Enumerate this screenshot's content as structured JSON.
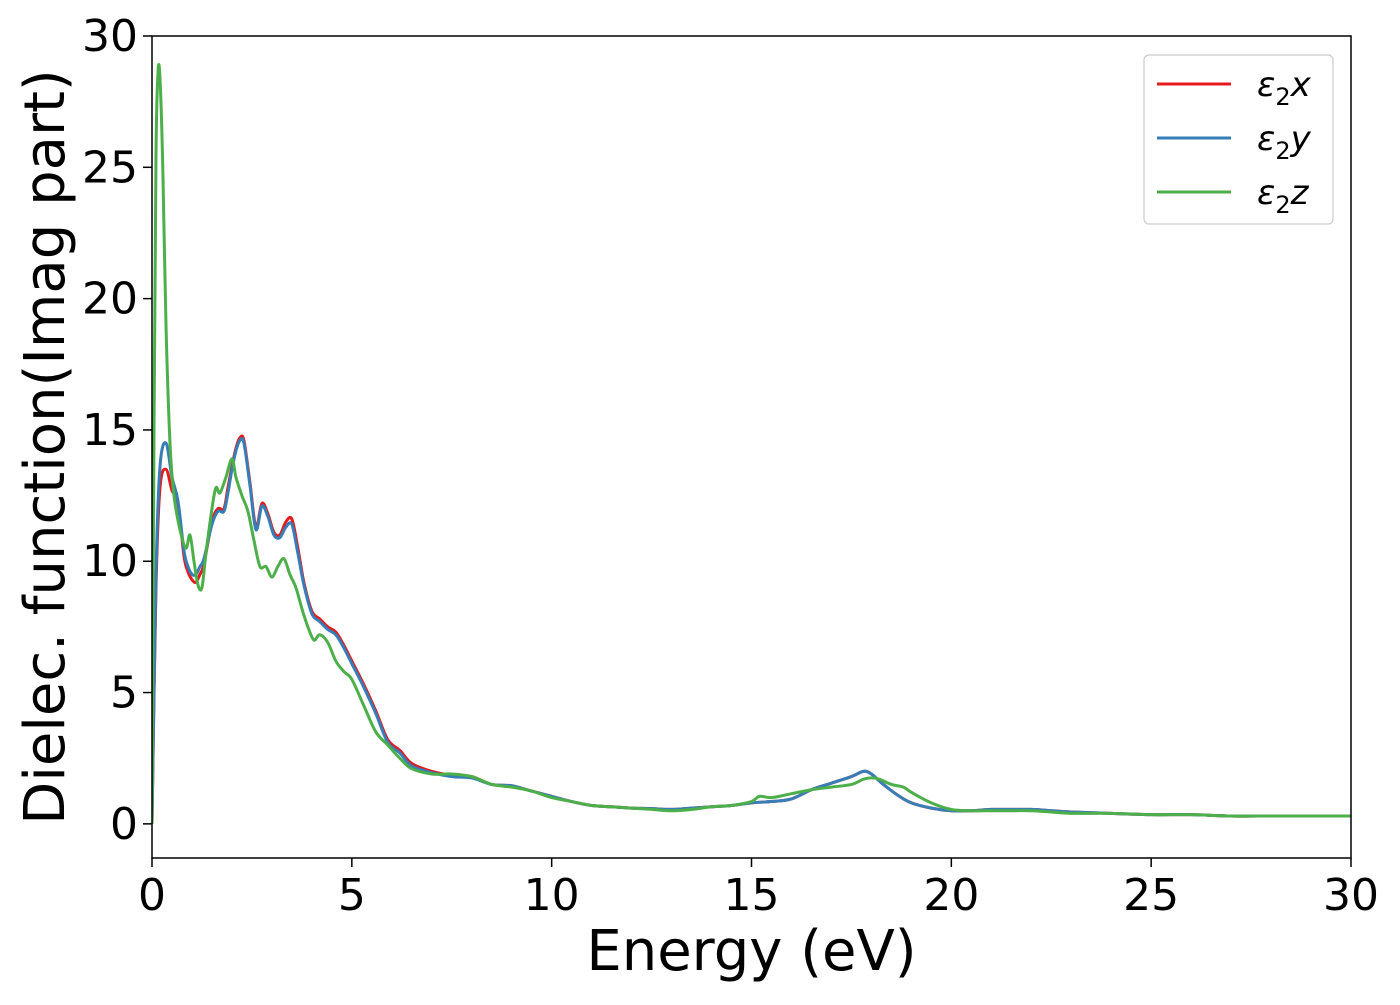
{
  "chart_data": {
    "type": "line",
    "xlabel": "Energy (eV)",
    "ylabel": "Dielec. function(Imag part)",
    "xlim": [
      0,
      30
    ],
    "ylim": [
      -1.3,
      30
    ],
    "xticks": [
      "0",
      "5",
      "10",
      "15",
      "20",
      "25",
      "30"
    ],
    "yticks": [
      "0",
      "5",
      "10",
      "15",
      "20",
      "25",
      "30"
    ],
    "grid": false,
    "legend_placement": "top-right",
    "series": [
      {
        "name": "ε2x",
        "legend_base": "ε",
        "legend_sub": "2",
        "legend_suffix": "x",
        "color": "#e41a1c",
        "x": [
          0,
          0.1,
          0.2,
          0.35,
          0.5,
          0.65,
          0.8,
          0.9,
          1.0,
          1.1,
          1.2,
          1.3,
          1.5,
          1.65,
          1.8,
          1.9,
          2.0,
          2.1,
          2.2,
          2.3,
          2.45,
          2.6,
          2.75,
          2.9,
          3.05,
          3.2,
          3.35,
          3.5,
          3.65,
          3.8,
          4.0,
          4.2,
          4.4,
          4.6,
          4.8,
          5.0,
          5.3,
          5.6,
          5.9,
          6.2,
          6.5,
          7.0,
          7.5,
          8.0,
          8.5,
          9.0,
          9.5,
          10.0,
          10.5,
          11.0,
          11.5,
          12.0,
          12.5,
          13.0,
          13.5,
          14.0,
          14.5,
          15.0,
          15.5,
          16.0,
          16.5,
          17.0,
          17.5,
          17.8,
          18.0,
          18.3,
          18.7,
          19.0,
          19.5,
          20.0,
          20.5,
          21.0,
          21.5,
          22.0,
          22.5,
          23.0,
          24.0,
          25.0,
          26.0,
          27.0,
          28.0,
          29.0,
          30.0
        ],
        "y": [
          0,
          9.0,
          12.8,
          13.5,
          12.7,
          12.2,
          10.2,
          9.6,
          9.3,
          9.2,
          9.5,
          9.9,
          11.5,
          12.0,
          12.0,
          12.8,
          13.6,
          14.3,
          14.7,
          14.6,
          13.0,
          11.3,
          12.2,
          11.8,
          11.1,
          11.0,
          11.5,
          11.6,
          10.5,
          9.2,
          8.1,
          7.8,
          7.5,
          7.3,
          6.8,
          6.2,
          5.3,
          4.3,
          3.2,
          2.8,
          2.3,
          2.0,
          1.85,
          1.8,
          1.5,
          1.45,
          1.25,
          1.05,
          0.85,
          0.7,
          0.65,
          0.6,
          0.58,
          0.55,
          0.6,
          0.65,
          0.7,
          0.8,
          0.85,
          0.95,
          1.3,
          1.55,
          1.8,
          2.0,
          1.9,
          1.5,
          1.05,
          0.8,
          0.6,
          0.5,
          0.5,
          0.55,
          0.55,
          0.55,
          0.5,
          0.45,
          0.4,
          0.35,
          0.35,
          0.3,
          0.3,
          0.3,
          0.3
        ]
      },
      {
        "name": "ε2y",
        "legend_base": "ε",
        "legend_sub": "2",
        "legend_suffix": "y",
        "color": "#377eb8",
        "x": [
          0,
          0.1,
          0.2,
          0.35,
          0.5,
          0.65,
          0.8,
          0.9,
          1.0,
          1.1,
          1.2,
          1.3,
          1.5,
          1.65,
          1.8,
          1.9,
          2.0,
          2.1,
          2.2,
          2.3,
          2.45,
          2.6,
          2.75,
          2.9,
          3.05,
          3.2,
          3.35,
          3.5,
          3.65,
          3.8,
          4.0,
          4.2,
          4.4,
          4.6,
          4.8,
          5.0,
          5.3,
          5.6,
          5.9,
          6.2,
          6.5,
          7.0,
          7.5,
          8.0,
          8.5,
          9.0,
          9.5,
          10.0,
          10.5,
          11.0,
          11.5,
          12.0,
          12.5,
          13.0,
          13.5,
          14.0,
          14.5,
          15.0,
          15.5,
          16.0,
          16.5,
          17.0,
          17.5,
          17.8,
          18.0,
          18.3,
          18.7,
          19.0,
          19.5,
          20.0,
          20.5,
          21.0,
          21.5,
          22.0,
          22.5,
          23.0,
          24.0,
          25.0,
          26.0,
          27.0,
          28.0,
          29.0,
          30.0
        ],
        "y": [
          0,
          9.5,
          13.6,
          14.5,
          13.2,
          12.3,
          10.4,
          9.8,
          9.5,
          9.5,
          9.8,
          10.1,
          11.4,
          11.9,
          11.9,
          12.6,
          13.5,
          14.2,
          14.6,
          14.5,
          12.9,
          11.2,
          12.1,
          11.7,
          11.0,
          10.9,
          11.3,
          11.4,
          10.3,
          9.1,
          8.0,
          7.7,
          7.4,
          7.2,
          6.7,
          6.1,
          5.2,
          4.2,
          3.1,
          2.7,
          2.2,
          1.95,
          1.8,
          1.75,
          1.5,
          1.45,
          1.25,
          1.05,
          0.85,
          0.7,
          0.65,
          0.6,
          0.58,
          0.55,
          0.6,
          0.65,
          0.7,
          0.8,
          0.85,
          0.95,
          1.3,
          1.55,
          1.8,
          2.0,
          1.9,
          1.5,
          1.05,
          0.8,
          0.6,
          0.5,
          0.5,
          0.55,
          0.55,
          0.55,
          0.5,
          0.45,
          0.4,
          0.35,
          0.35,
          0.3,
          0.3,
          0.3,
          0.3
        ]
      },
      {
        "name": "ε2z",
        "legend_base": "ε",
        "legend_sub": "2",
        "legend_suffix": "z",
        "color": "#4daf4a",
        "x": [
          0,
          0.05,
          0.1,
          0.15,
          0.2,
          0.27,
          0.35,
          0.45,
          0.55,
          0.7,
          0.85,
          0.95,
          1.05,
          1.15,
          1.25,
          1.35,
          1.5,
          1.6,
          1.7,
          1.85,
          2.0,
          2.1,
          2.25,
          2.4,
          2.55,
          2.7,
          2.85,
          3.0,
          3.15,
          3.3,
          3.45,
          3.6,
          3.75,
          3.9,
          4.05,
          4.2,
          4.4,
          4.6,
          4.8,
          5.0,
          5.3,
          5.6,
          5.9,
          6.2,
          6.5,
          7.0,
          7.5,
          8.0,
          8.5,
          9.0,
          9.5,
          10.0,
          10.5,
          11.0,
          11.5,
          12.0,
          12.5,
          13.0,
          13.5,
          14.0,
          14.5,
          15.0,
          15.2,
          15.5,
          16.0,
          16.5,
          17.0,
          17.5,
          17.8,
          18.0,
          18.2,
          18.5,
          18.8,
          19.0,
          19.5,
          20.0,
          20.5,
          21.0,
          21.5,
          22.0,
          22.5,
          23.0,
          24.0,
          25.0,
          26.0,
          27.0,
          28.0,
          29.0,
          30.0
        ],
        "y": [
          0,
          15.0,
          25.5,
          28.6,
          28.4,
          25.0,
          19.0,
          14.5,
          12.5,
          11.2,
          10.5,
          11.0,
          10.0,
          9.1,
          9.0,
          10.3,
          12.0,
          12.8,
          12.6,
          13.2,
          13.9,
          13.2,
          12.5,
          11.9,
          10.8,
          9.8,
          9.8,
          9.4,
          9.8,
          10.1,
          9.5,
          9.0,
          8.2,
          7.5,
          7.0,
          7.2,
          6.9,
          6.2,
          5.8,
          5.5,
          4.5,
          3.5,
          3.0,
          2.5,
          2.1,
          1.9,
          1.9,
          1.8,
          1.5,
          1.4,
          1.25,
          1.0,
          0.85,
          0.7,
          0.65,
          0.6,
          0.55,
          0.5,
          0.55,
          0.65,
          0.7,
          0.85,
          1.05,
          1.0,
          1.15,
          1.3,
          1.4,
          1.5,
          1.7,
          1.75,
          1.7,
          1.5,
          1.4,
          1.2,
          0.8,
          0.55,
          0.5,
          0.5,
          0.5,
          0.5,
          0.45,
          0.4,
          0.4,
          0.35,
          0.35,
          0.3,
          0.3,
          0.3,
          0.3
        ]
      }
    ]
  }
}
